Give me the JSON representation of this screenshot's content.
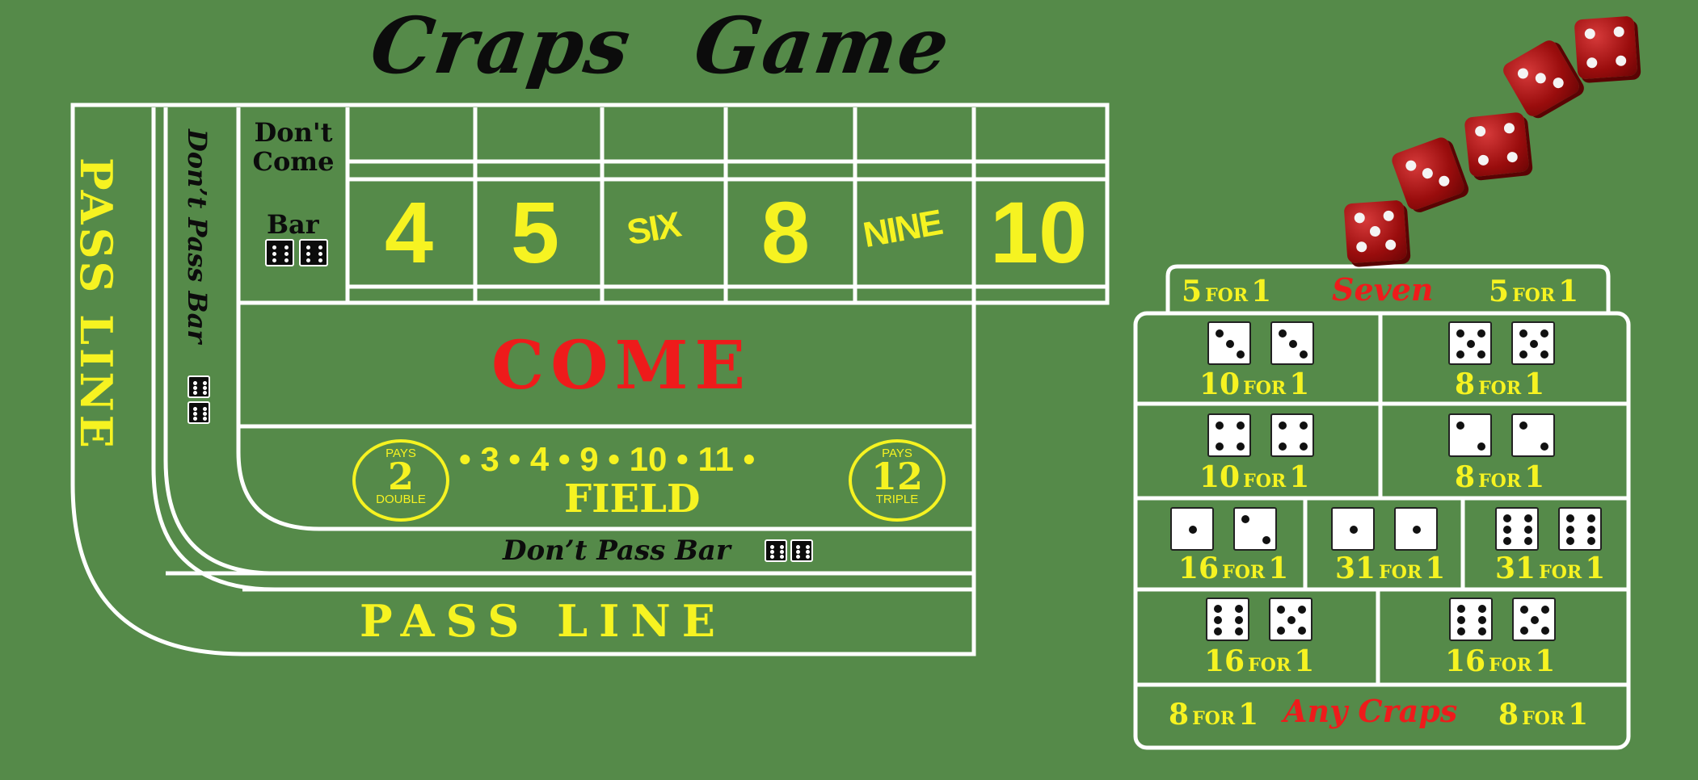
{
  "title": {
    "word1": "Craps",
    "word2": "Game"
  },
  "table": {
    "pass_line_vertical": "PASS LINE",
    "dont_pass_vertical": "Don’t Pass  Bar",
    "dont_come_line1": "Don't",
    "dont_come_line2": "Come",
    "dont_come_bar": "Bar",
    "point_numbers": [
      "4",
      "5",
      "SIX",
      "8",
      "NINE",
      "10"
    ],
    "come": "COME",
    "field": {
      "label": "FIELD",
      "numbers": [
        "3",
        "4",
        "9",
        "10",
        "11"
      ],
      "left_circle": {
        "top": "PAYS",
        "num": "2",
        "bottom": "DOUBLE"
      },
      "right_circle": {
        "top": "PAYS",
        "num": "12",
        "bottom": "TRIPLE"
      },
      "bullet": "•"
    },
    "dont_pass_bar": "Don’t Pass  Bar",
    "pass_line": "PASS LINE"
  },
  "proposition": {
    "seven": {
      "label": "Seven",
      "left_n": "5",
      "left_f": "FOR",
      "left_d": "1",
      "right_n": "5",
      "right_f": "FOR",
      "right_d": "1"
    },
    "hardways": [
      {
        "dice": [
          3,
          3
        ],
        "n": "10",
        "f": "FOR",
        "d": "1"
      },
      {
        "dice": [
          5,
          5
        ],
        "n": "8",
        "f": "FOR",
        "d": "1"
      },
      {
        "dice": [
          4,
          4
        ],
        "n": "10",
        "f": "FOR",
        "d": "1"
      },
      {
        "dice": [
          2,
          2
        ],
        "n": "8",
        "f": "FOR",
        "d": "1"
      }
    ],
    "middle_row": [
      {
        "dice": [
          1,
          2
        ],
        "n": "16",
        "f": "FOR",
        "d": "1"
      },
      {
        "dice": [
          1,
          1
        ],
        "n": "31",
        "f": "FOR",
        "d": "1"
      },
      {
        "dice": [
          6,
          6
        ],
        "n": "31",
        "f": "FOR",
        "d": "1"
      }
    ],
    "eleven_row": [
      {
        "dice": [
          6,
          5
        ],
        "n": "16",
        "f": "FOR",
        "d": "1"
      },
      {
        "dice": [
          6,
          5
        ],
        "n": "16",
        "f": "FOR",
        "d": "1"
      }
    ],
    "any_craps": {
      "label": "Any Craps",
      "left_n": "8",
      "left_f": "FOR",
      "left_d": "1",
      "right_n": "8",
      "right_f": "FOR",
      "right_d": "1"
    }
  },
  "colors": {
    "felt": "#558a49",
    "yellow": "#f6f321",
    "red": "#ee1b1b",
    "line": "#ffffff"
  },
  "icons": [
    "red-die-icon",
    "white-die-icon",
    "black-die-icon"
  ]
}
